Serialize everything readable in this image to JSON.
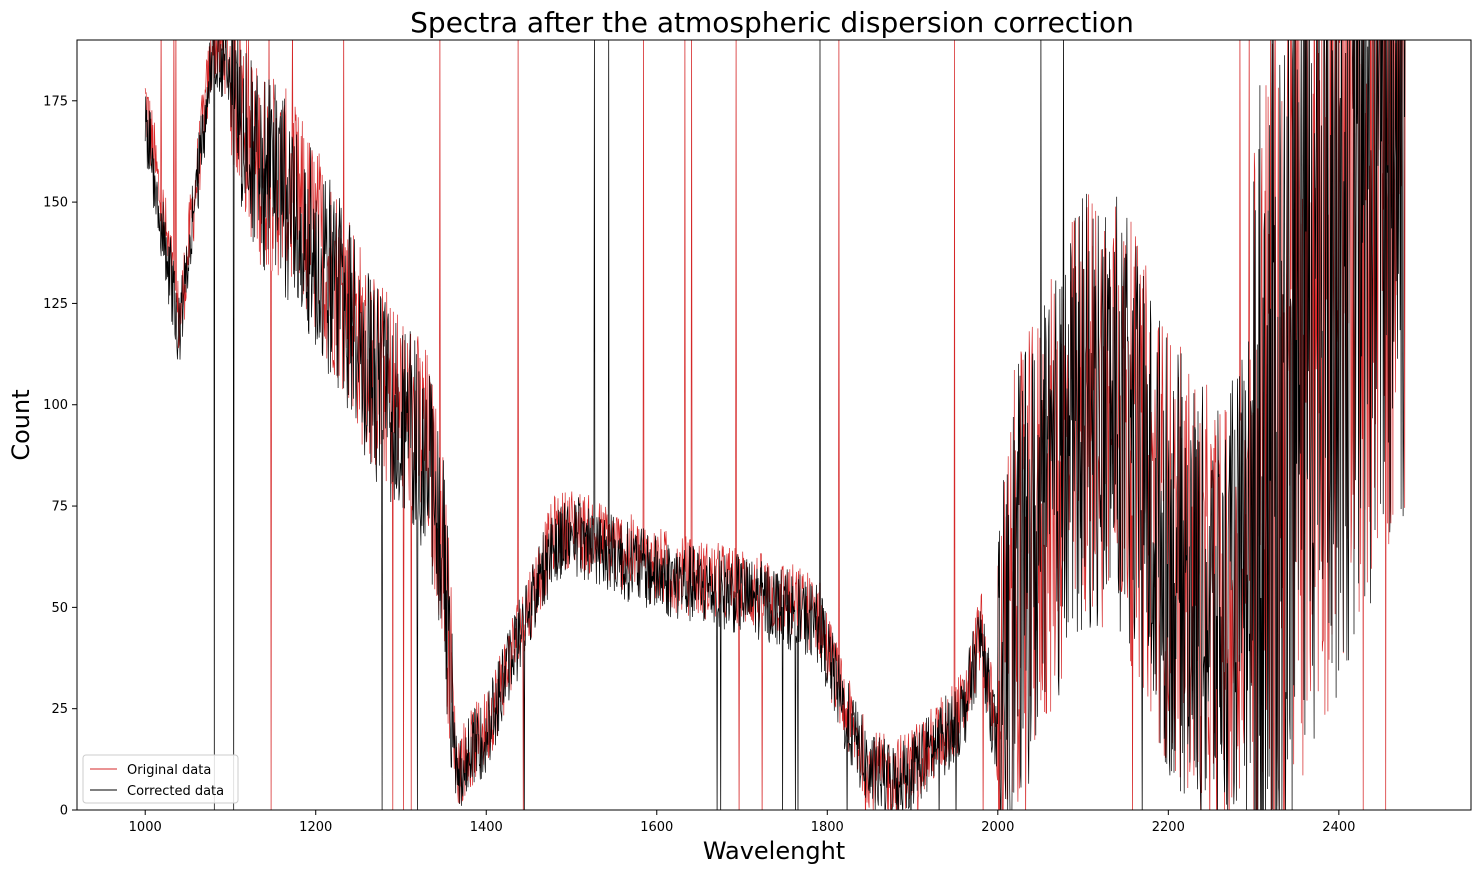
{
  "chart_data": {
    "type": "line",
    "title": "Spectra after the atmospheric dispersion correction",
    "xlabel": "Wavelenght",
    "ylabel": "Count",
    "xlim": [
      920,
      2555
    ],
    "ylim": [
      0,
      190
    ],
    "xticks": [
      1000,
      1200,
      1400,
      1600,
      1800,
      2000,
      2200,
      2400
    ],
    "yticks": [
      0,
      25,
      50,
      75,
      100,
      125,
      150,
      175
    ],
    "grid": false,
    "legend_position": "lower-left",
    "series": [
      {
        "name": "Original data",
        "color": "#d62728",
        "x": [
          1000,
          1040,
          1080,
          1100,
          1130,
          1160,
          1200,
          1240,
          1260,
          1280,
          1300,
          1330,
          1350,
          1365,
          1400,
          1440,
          1480,
          1500,
          1550,
          1600,
          1650,
          1700,
          1750,
          1790,
          1820,
          1850,
          1880,
          1920,
          1960,
          1980,
          2000,
          2020,
          2060,
          2100,
          2140,
          2200,
          2260,
          2320,
          2360,
          2400,
          2440,
          2478
        ],
        "y": [
          175,
          120,
          190,
          185,
          160,
          155,
          140,
          125,
          110,
          105,
          100,
          90,
          65,
          10,
          20,
          45,
          68,
          70,
          65,
          60,
          57,
          55,
          52,
          48,
          25,
          10,
          8,
          15,
          25,
          45,
          15,
          55,
          75,
          100,
          100,
          65,
          45,
          80,
          130,
          150,
          170,
          185
        ]
      },
      {
        "name": "Corrected data",
        "color": "#000000",
        "x": [
          1000,
          1040,
          1080,
          1100,
          1130,
          1160,
          1200,
          1240,
          1260,
          1280,
          1300,
          1330,
          1350,
          1365,
          1400,
          1440,
          1480,
          1500,
          1550,
          1600,
          1650,
          1700,
          1750,
          1790,
          1820,
          1850,
          1880,
          1920,
          1960,
          1980,
          2000,
          2020,
          2060,
          2100,
          2140,
          2200,
          2260,
          2320,
          2360,
          2400,
          2440,
          2478
        ],
        "y": [
          170,
          118,
          188,
          183,
          158,
          153,
          138,
          123,
          108,
          103,
          98,
          88,
          63,
          9,
          19,
          44,
          66,
          68,
          63,
          58,
          55,
          53,
          50,
          46,
          24,
          9,
          7,
          14,
          24,
          43,
          14,
          53,
          73,
          98,
          98,
          63,
          43,
          78,
          128,
          148,
          168,
          183
        ]
      }
    ]
  }
}
